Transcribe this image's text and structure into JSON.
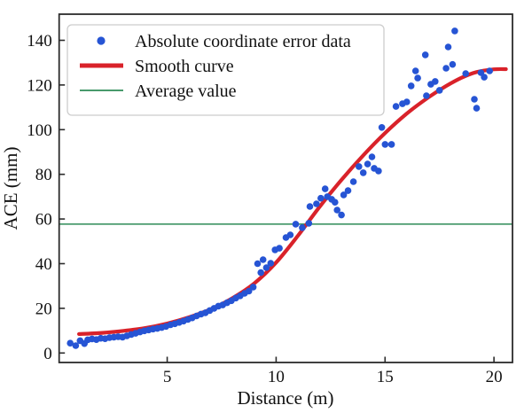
{
  "figure": {
    "background": "#ffffff",
    "spine_color": "#2b2b2b",
    "text_color": "#111111"
  },
  "legend": {
    "items": [
      {
        "label": "Absolute coordinate error data",
        "marker": "dot",
        "color": "#2654d4"
      },
      {
        "label": "Smooth curve",
        "marker": "thick-line",
        "color": "#d9222a"
      },
      {
        "label": "Average value",
        "marker": "thin-line",
        "color": "#2e8b57"
      }
    ]
  },
  "chart_data": {
    "type": "scatter",
    "title": "",
    "xlabel": "Distance (m)",
    "ylabel": "ACE (mm)",
    "xlim": [
      0.04,
      20.85
    ],
    "ylim": [
      -4.25,
      151.7
    ],
    "xticks": [
      5,
      10,
      15,
      20
    ],
    "yticks": [
      0,
      20,
      40,
      60,
      80,
      100,
      120,
      140
    ],
    "grid": false,
    "legend_position": "upper left",
    "series": [
      {
        "name": "Absolute coordinate error data",
        "kind": "scatter",
        "color": "#2654d4",
        "marker_radius": 3.8,
        "points": [
          [
            0.55,
            4.4
          ],
          [
            0.8,
            3.3
          ],
          [
            1.0,
            5.5
          ],
          [
            1.2,
            4.2
          ],
          [
            1.35,
            5.9
          ],
          [
            1.55,
            6.3
          ],
          [
            1.75,
            6.0
          ],
          [
            1.95,
            6.6
          ],
          [
            2.15,
            6.4
          ],
          [
            2.35,
            6.9
          ],
          [
            2.55,
            7.1
          ],
          [
            2.75,
            7.3
          ],
          [
            2.95,
            7.1
          ],
          [
            3.15,
            7.7
          ],
          [
            3.35,
            8.3
          ],
          [
            3.55,
            8.8
          ],
          [
            3.75,
            9.4
          ],
          [
            3.95,
            9.9
          ],
          [
            4.15,
            10.3
          ],
          [
            4.35,
            10.7
          ],
          [
            4.55,
            11.0
          ],
          [
            4.75,
            11.4
          ],
          [
            4.95,
            11.9
          ],
          [
            5.15,
            12.6
          ],
          [
            5.35,
            13.1
          ],
          [
            5.55,
            13.7
          ],
          [
            5.75,
            14.3
          ],
          [
            5.95,
            15.0
          ],
          [
            6.15,
            15.7
          ],
          [
            6.35,
            16.6
          ],
          [
            6.55,
            17.4
          ],
          [
            6.75,
            18.0
          ],
          [
            6.95,
            19.0
          ],
          [
            7.15,
            20.0
          ],
          [
            7.35,
            21.0
          ],
          [
            7.55,
            21.5
          ],
          [
            7.75,
            22.5
          ],
          [
            7.95,
            23.4
          ],
          [
            8.15,
            24.6
          ],
          [
            8.35,
            25.6
          ],
          [
            8.55,
            26.7
          ],
          [
            8.75,
            27.7
          ],
          [
            8.95,
            29.5
          ],
          [
            9.15,
            40.0
          ],
          [
            9.3,
            36.0
          ],
          [
            9.4,
            41.8
          ],
          [
            9.55,
            38.2
          ],
          [
            9.75,
            40.2
          ],
          [
            9.95,
            46.2
          ],
          [
            10.15,
            46.9
          ],
          [
            10.45,
            51.7
          ],
          [
            10.65,
            52.9
          ],
          [
            10.9,
            57.7
          ],
          [
            11.2,
            56.1
          ],
          [
            11.5,
            58.1
          ],
          [
            11.55,
            65.6
          ],
          [
            11.85,
            66.8
          ],
          [
            12.05,
            69.3
          ],
          [
            12.25,
            73.5
          ],
          [
            12.35,
            70.0
          ],
          [
            12.55,
            68.8
          ],
          [
            12.7,
            67.5
          ],
          [
            12.8,
            64.0
          ],
          [
            13.0,
            61.8
          ],
          [
            13.1,
            70.8
          ],
          [
            13.3,
            72.7
          ],
          [
            13.55,
            76.7
          ],
          [
            13.8,
            83.5
          ],
          [
            14.0,
            80.7
          ],
          [
            14.2,
            84.6
          ],
          [
            14.4,
            87.8
          ],
          [
            14.5,
            82.7
          ],
          [
            14.7,
            81.5
          ],
          [
            14.85,
            101.0
          ],
          [
            15.0,
            93.4
          ],
          [
            15.3,
            93.4
          ],
          [
            15.5,
            110.4
          ],
          [
            15.8,
            111.6
          ],
          [
            16.0,
            112.4
          ],
          [
            16.2,
            119.6
          ],
          [
            16.4,
            126.3
          ],
          [
            16.5,
            123.1
          ],
          [
            16.85,
            133.5
          ],
          [
            16.9,
            115.2
          ],
          [
            17.1,
            120.3
          ],
          [
            17.3,
            121.6
          ],
          [
            17.5,
            117.6
          ],
          [
            17.8,
            127.5
          ],
          [
            17.9,
            137.0
          ],
          [
            18.1,
            129.2
          ],
          [
            18.2,
            144.2
          ],
          [
            18.7,
            125.1
          ],
          [
            19.1,
            113.6
          ],
          [
            19.2,
            109.6
          ],
          [
            19.4,
            125.5
          ],
          [
            19.55,
            123.5
          ],
          [
            19.8,
            126.3
          ]
        ]
      },
      {
        "name": "Smooth curve",
        "kind": "line",
        "color": "#d9222a",
        "line_width": 4.2,
        "points": [
          [
            0.95,
            8.5
          ],
          [
            2,
            9.0
          ],
          [
            3,
            9.9
          ],
          [
            4,
            11.2
          ],
          [
            5,
            13.2
          ],
          [
            6,
            16.0
          ],
          [
            7,
            19.6
          ],
          [
            8,
            24.6
          ],
          [
            9,
            31.2
          ],
          [
            10,
            40.5
          ],
          [
            11,
            52.5
          ],
          [
            12,
            65.5
          ],
          [
            13,
            77.5
          ],
          [
            14,
            88.5
          ],
          [
            15,
            98.5
          ],
          [
            16,
            107.2
          ],
          [
            17,
            114.5
          ],
          [
            17.8,
            119.5
          ],
          [
            18.5,
            123.2
          ],
          [
            19.2,
            125.8
          ],
          [
            20,
            127.0
          ],
          [
            20.55,
            127.1
          ]
        ]
      },
      {
        "name": "Average value",
        "kind": "hline",
        "color": "#2e8b57",
        "line_width": 1.6,
        "value": 57.7
      }
    ]
  }
}
